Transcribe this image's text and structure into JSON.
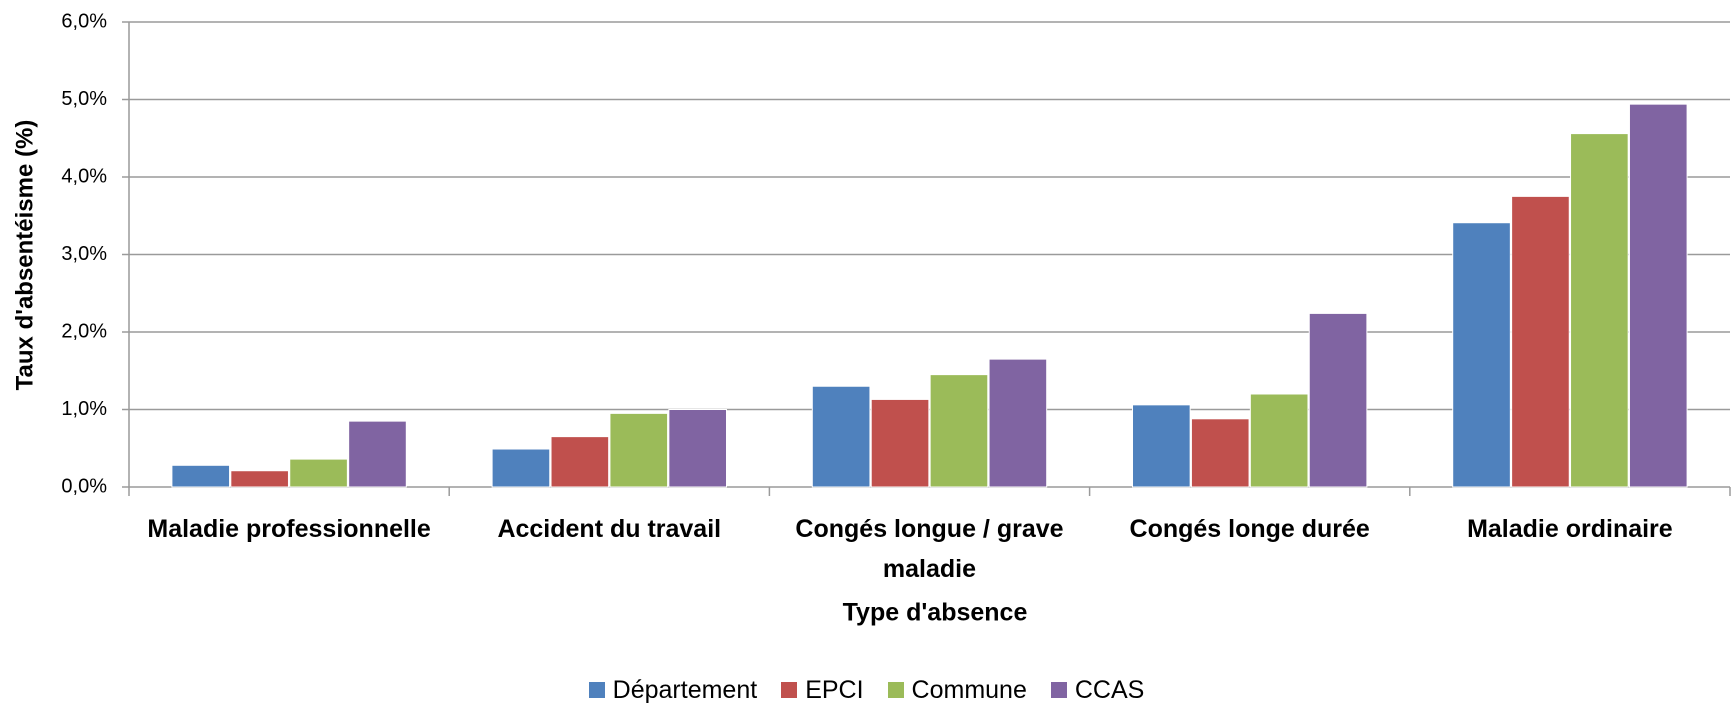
{
  "chart_data": {
    "type": "bar",
    "y_label": "Taux d'absentéisme (%)",
    "x_label": "Type d'absence",
    "categories": [
      "Maladie professionnelle",
      "Accident du travail",
      "Congés longue / grave maladie",
      "Congés longe durée",
      "Maladie ordinaire"
    ],
    "series": [
      {
        "name": "Département",
        "color": "#4f81bd",
        "values": [
          0.28,
          0.49,
          1.3,
          1.06,
          3.41
        ]
      },
      {
        "name": "EPCI",
        "color": "#c0504d",
        "values": [
          0.21,
          0.65,
          1.13,
          0.88,
          3.75
        ]
      },
      {
        "name": "Commune",
        "color": "#9bbb59",
        "values": [
          0.36,
          0.95,
          1.45,
          1.2,
          4.56
        ]
      },
      {
        "name": "CCAS",
        "color": "#8064a2",
        "values": [
          0.85,
          1.0,
          1.65,
          2.24,
          4.94
        ]
      }
    ],
    "ylim": [
      0,
      6
    ],
    "yticks": [
      {
        "value": 0,
        "label": "0,0%"
      },
      {
        "value": 1,
        "label": "1,0%"
      },
      {
        "value": 2,
        "label": "2,0%"
      },
      {
        "value": 3,
        "label": "3,0%"
      },
      {
        "value": 4,
        "label": "4,0%"
      },
      {
        "value": 5,
        "label": "5,0%"
      },
      {
        "value": 6,
        "label": "6,0%"
      }
    ],
    "grid": true,
    "legend": "bottom"
  }
}
